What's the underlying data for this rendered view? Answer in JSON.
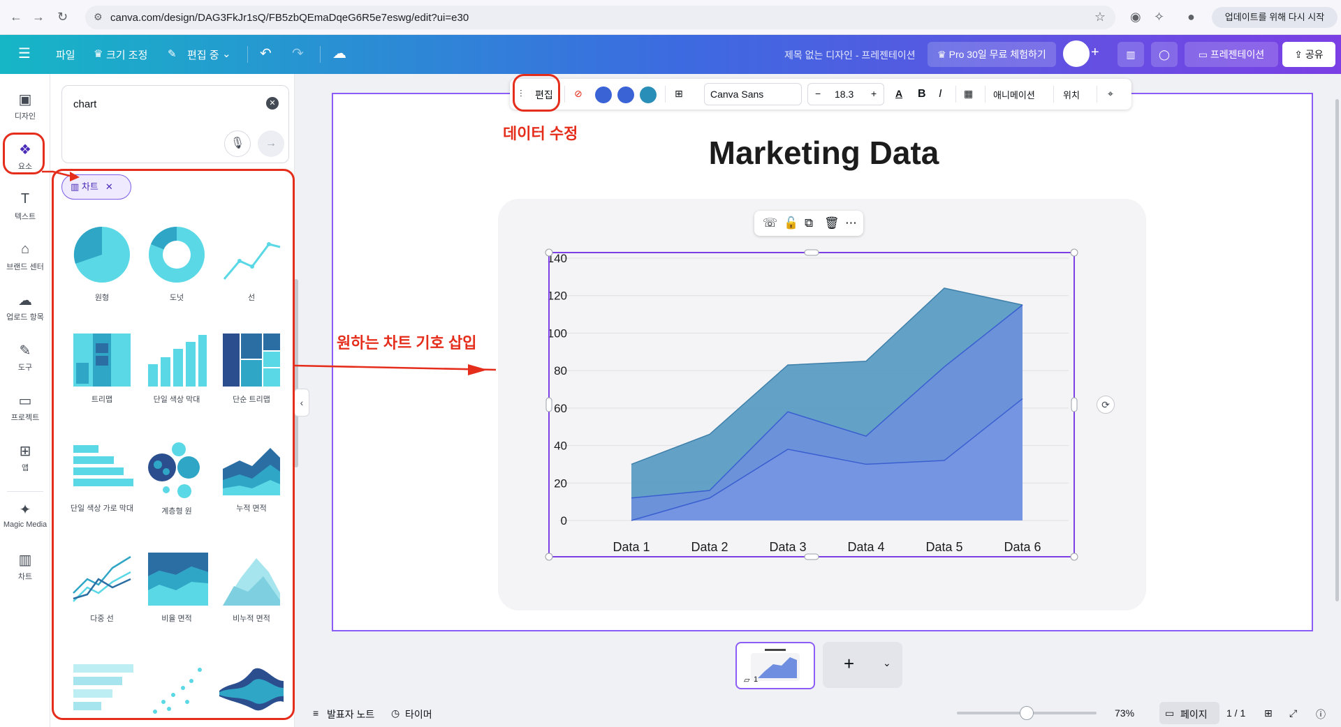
{
  "browser": {
    "url": "canva.com/design/DAG3FkJr1sQ/FB5zbQEmaDqeG6R5e7eswg/edit?ui=e30",
    "update_button": "업데이트를 위해 다시 시작"
  },
  "header": {
    "menu_file": "파일",
    "menu_resize": "크기 조정",
    "menu_editing": "편집 중",
    "design_title": "제목 없는 디자인 - 프레젠테이션",
    "pro_trial": "Pro 30일 무료 체험하기",
    "present": "프레젠테이션",
    "share": "공유"
  },
  "rail": {
    "items": [
      {
        "label": "디자인",
        "icon": "layout-icon"
      },
      {
        "label": "요소",
        "icon": "elements-icon"
      },
      {
        "label": "텍스트",
        "icon": "text-icon"
      },
      {
        "label": "브랜드 센터",
        "icon": "brand-icon"
      },
      {
        "label": "업로드 항목",
        "icon": "upload-icon"
      },
      {
        "label": "도구",
        "icon": "draw-icon"
      },
      {
        "label": "프로젝트",
        "icon": "folder-icon"
      },
      {
        "label": "앱",
        "icon": "apps-icon"
      },
      {
        "label": "Magic Media",
        "icon": "magic-media-icon"
      },
      {
        "label": "차트",
        "icon": "chart-icon"
      }
    ]
  },
  "panel": {
    "search_value": "chart",
    "filter_chip": "차트",
    "tiles": [
      {
        "label": "원형"
      },
      {
        "label": "도넛"
      },
      {
        "label": "선"
      },
      {
        "label": "트리맵"
      },
      {
        "label": "단일 색상 막대"
      },
      {
        "label": "단순 트리맵"
      },
      {
        "label": "단일 색상 가로 막대"
      },
      {
        "label": "계층형 원"
      },
      {
        "label": "누적 면적"
      },
      {
        "label": "다중 선"
      },
      {
        "label": "비율 면적"
      },
      {
        "label": "비누적 면적"
      }
    ]
  },
  "toolbar": {
    "edit": "편집",
    "font": "Canva Sans",
    "size": "18.3",
    "animate": "애니메이션",
    "position": "위치",
    "colors": [
      "#3a63d6",
      "#3a63d6",
      "#2a8fb8"
    ]
  },
  "annotations": {
    "edit_data": "데이터 수정",
    "insert_chart": "원하는 차트 기호 삽입",
    "color": "#e52d1c"
  },
  "canvas": {
    "title": "Marketing Data"
  },
  "chart_data": {
    "type": "area",
    "stacked": false,
    "categories": [
      "Data 1",
      "Data 2",
      "Data 3",
      "Data 4",
      "Data 5",
      "Data 6"
    ],
    "ylim": [
      0,
      140
    ],
    "yticks": [
      0,
      20,
      40,
      60,
      80,
      100,
      120,
      140
    ],
    "grid": true,
    "series": [
      {
        "values": [
          30,
          46,
          83,
          85,
          124,
          115
        ],
        "color": "#5b9cc4"
      },
      {
        "values": [
          12,
          16,
          58,
          45,
          82,
          115
        ],
        "color": "#6f8ee0"
      },
      {
        "values": [
          0,
          12,
          38,
          30,
          32,
          65
        ],
        "color": "#7896e6"
      }
    ]
  },
  "bottom": {
    "notes": "발표자 노트",
    "timer": "타이머",
    "zoom": "73%",
    "pages": "페이지",
    "page_count": "1 / 1",
    "thumb_number": "1"
  }
}
